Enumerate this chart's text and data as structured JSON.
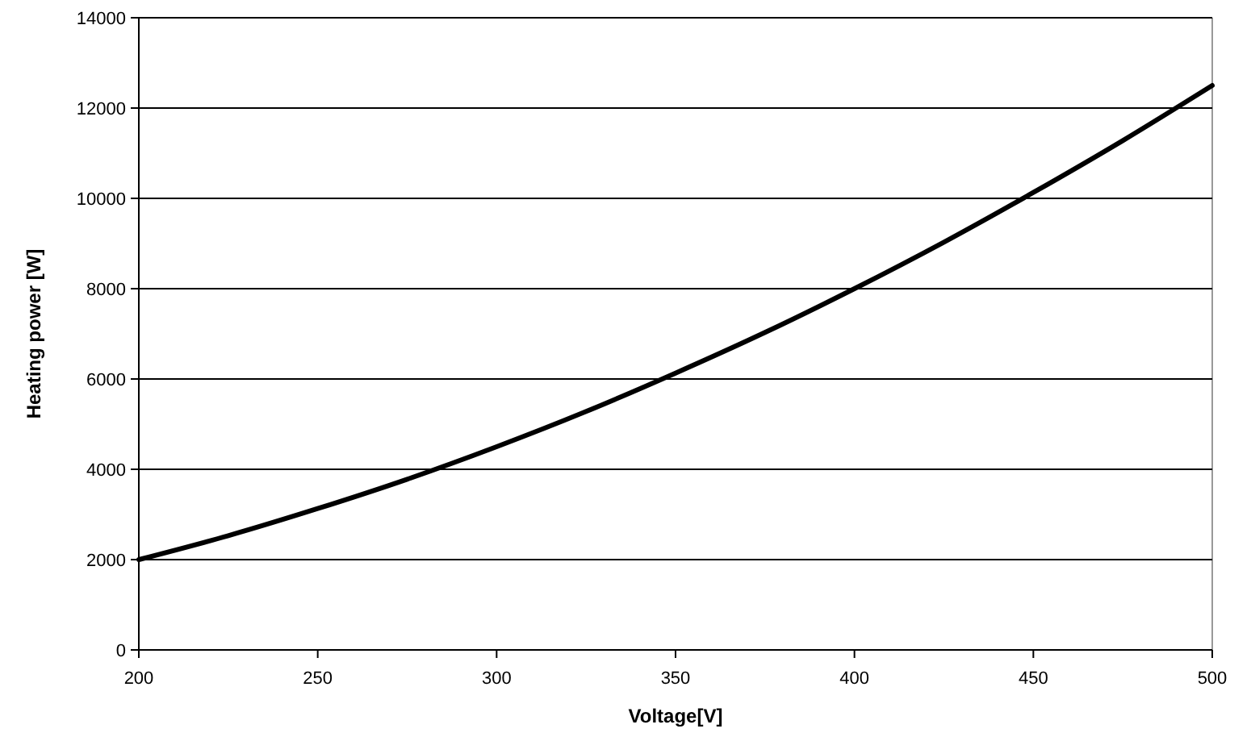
{
  "chart_data": {
    "type": "line",
    "xlabel": "Voltage[V]",
    "ylabel": "Heating power [W]",
    "x": [
      200,
      225,
      250,
      275,
      300,
      325,
      350,
      375,
      400,
      425,
      450,
      475,
      500
    ],
    "series": [
      {
        "color": "#000000",
        "values": [
          2000,
          2530,
          3130,
          3780,
          4500,
          5280,
          6130,
          7030,
          8000,
          9030,
          10130,
          11280,
          12500
        ]
      }
    ],
    "xlim": [
      200,
      500
    ],
    "xticks": [
      200,
      250,
      300,
      350,
      400,
      450,
      500
    ],
    "ylim": [
      0,
      14000
    ],
    "yticks": [
      0,
      2000,
      4000,
      6000,
      8000,
      10000,
      12000,
      14000
    ],
    "grid": "y",
    "marker": "none",
    "line_style": "solid"
  }
}
